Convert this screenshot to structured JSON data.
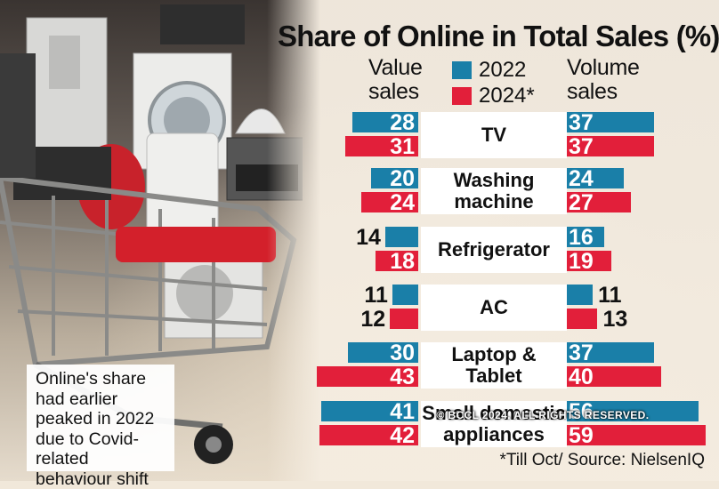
{
  "title": "Share of Online in Total Sales (%)",
  "headers": {
    "value_sales_line1": "Value",
    "value_sales_line2": "sales",
    "volume_sales_line1": "Volume",
    "volume_sales_line2": "sales"
  },
  "note": "Online's share had earlier peaked in 2022 due to Covid-related behaviour shift",
  "source": "*Till Oct/ Source: NielsenIQ",
  "watermark": "© BCCL 2024. ALL RIGHTS RESERVED.",
  "colors": {
    "y2022": "#1a7fa8",
    "y2024": "#e21f3a",
    "background": "#f1e8da"
  },
  "chart_data": {
    "type": "bar",
    "title": "Share of Online in Total Sales (%)",
    "categories": [
      "TV",
      "Washing machine",
      "Refrigerator",
      "AC",
      "Laptop & Tablet",
      "Small domestic appliances"
    ],
    "category_lines": [
      [
        "TV"
      ],
      [
        "Washing",
        "machine"
      ],
      [
        "Refrigerator"
      ],
      [
        "AC"
      ],
      [
        "Laptop &",
        "Tablet"
      ],
      [
        "Small domestic",
        "appliances"
      ]
    ],
    "legend": [
      "2022",
      "2024*"
    ],
    "panels": [
      "Value sales",
      "Volume sales"
    ],
    "series": [
      {
        "name": "2022",
        "panel": "Value sales",
        "values": [
          28,
          20,
          14,
          11,
          30,
          41
        ]
      },
      {
        "name": "2024*",
        "panel": "Value sales",
        "values": [
          31,
          24,
          18,
          12,
          43,
          42
        ]
      },
      {
        "name": "2022",
        "panel": "Volume sales",
        "values": [
          37,
          24,
          16,
          11,
          37,
          56
        ]
      },
      {
        "name": "2024*",
        "panel": "Volume sales",
        "values": [
          37,
          27,
          19,
          13,
          40,
          59
        ]
      }
    ]
  }
}
